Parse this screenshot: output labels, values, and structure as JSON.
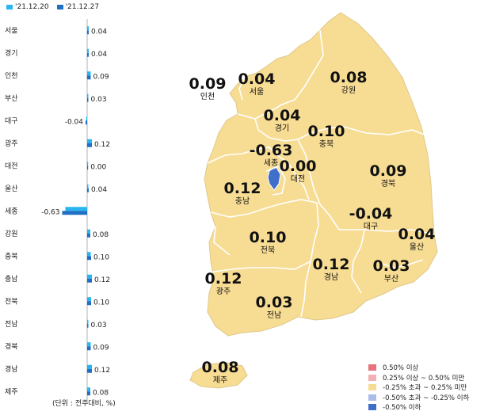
{
  "colors": {
    "series1": "#29b6f0",
    "series2": "#1f6fc4",
    "map_fill": "#f7dc93",
    "map_border": "#ffffff",
    "sejong_fill": "#3f6fc9",
    "label_color": "#111111"
  },
  "bar_legend": {
    "series1": "'21.12.20",
    "series2": "'21.12.27"
  },
  "unit_note": "(단위 : 전주대비, %)",
  "chart_data": {
    "type": "bar",
    "orientation": "horizontal",
    "categories": [
      "서울",
      "경기",
      "인천",
      "부산",
      "대구",
      "광주",
      "대전",
      "울산",
      "세종",
      "강원",
      "충북",
      "충남",
      "전북",
      "전남",
      "경북",
      "경남",
      "제주"
    ],
    "series": [
      {
        "name": "'21.12.20",
        "values": [
          0.04,
          0.04,
          0.09,
          0.03,
          -0.02,
          0.12,
          0.01,
          0.03,
          -0.55,
          0.08,
          0.09,
          0.12,
          0.1,
          0.03,
          0.09,
          0.12,
          0.08
        ]
      },
      {
        "name": "'21.12.27",
        "values": [
          0.04,
          0.04,
          0.09,
          0.03,
          -0.04,
          0.12,
          0.0,
          0.04,
          -0.63,
          0.08,
          0.1,
          0.12,
          0.1,
          0.03,
          0.09,
          0.12,
          0.08
        ]
      }
    ],
    "value_labels": [
      "0.04",
      "0.04",
      "0.09",
      "0.03",
      "-0.04",
      "0.12",
      "0.00",
      "0.04",
      "-0.63",
      "0.08",
      "0.10",
      "0.12",
      "0.10",
      "0.03",
      "0.09",
      "0.12",
      "0.08"
    ]
  },
  "map_labels": [
    {
      "value": "0.09",
      "name": "인천"
    },
    {
      "value": "0.04",
      "name": "서울"
    },
    {
      "value": "0.08",
      "name": "강원"
    },
    {
      "value": "0.04",
      "name": "경기"
    },
    {
      "value": "0.10",
      "name": "충북"
    },
    {
      "value": "-0.63",
      "name": "세종"
    },
    {
      "value": "0.00",
      "name": "대전"
    },
    {
      "value": "0.09",
      "name": "경북"
    },
    {
      "value": "0.12",
      "name": "충남"
    },
    {
      "value": "-0.04",
      "name": "대구"
    },
    {
      "value": "0.04",
      "name": "울산"
    },
    {
      "value": "0.10",
      "name": "전북"
    },
    {
      "value": "0.12",
      "name": "경남"
    },
    {
      "value": "0.03",
      "name": "부산"
    },
    {
      "value": "0.12",
      "name": "광주"
    },
    {
      "value": "0.03",
      "name": "전남"
    },
    {
      "value": "0.08",
      "name": "제주"
    }
  ],
  "map_legend": [
    {
      "label": "0.50% 이상",
      "color": "#e8737a"
    },
    {
      "label": "0.25% 이상 ~ 0.50% 미만",
      "color": "#f3b1b6"
    },
    {
      "label": "-0.25% 초과 ~ 0.25% 미만",
      "color": "#f7dc93"
    },
    {
      "label": "-0.50% 초과 ~ -0.25% 이하",
      "color": "#a9bde8"
    },
    {
      "label": "-0.50% 이하",
      "color": "#3f6fc9"
    }
  ]
}
